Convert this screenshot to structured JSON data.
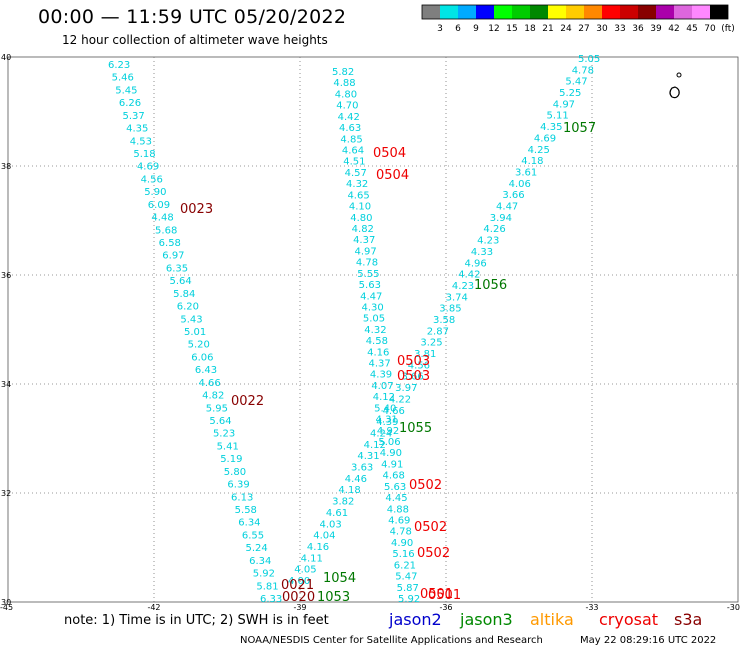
{
  "header": {
    "title": "00:00 — 11:59 UTC 05/20/2022",
    "subtitle": "12 hour collection of altimeter wave heights"
  },
  "colorbar": {
    "colors": [
      "#7f7f7f",
      "#00e5e5",
      "#00aaff",
      "#0000ff",
      "#00ff00",
      "#00cc00",
      "#008800",
      "#ffff00",
      "#ffcc00",
      "#ff8800",
      "#ff0000",
      "#cc0000",
      "#880000",
      "#aa00aa",
      "#dd66dd",
      "#ff88ff",
      "#000000"
    ],
    "ticks": [
      "3",
      "6",
      "9",
      "12",
      "15",
      "18",
      "21",
      "24",
      "27",
      "30",
      "33",
      "36",
      "39",
      "42",
      "45",
      "70",
      "(ft)"
    ]
  },
  "axes": {
    "x_ticks": [
      "-45",
      "-42",
      "-39",
      "-36",
      "-33",
      "-30"
    ],
    "y_ticks": [
      "40",
      "38",
      "36",
      "34",
      "32",
      "30"
    ]
  },
  "tracks": [
    {
      "id": "track-west",
      "color": "#00d0dc",
      "labels": [
        "6.23",
        "5.46",
        "5.45",
        "6.26",
        "5.37",
        "4.35",
        "4.53",
        "5.18",
        "4.69",
        "4.56",
        "5.90",
        "6.09",
        "4.48",
        "5.68",
        "6.58",
        "6.97",
        "6.35",
        "5.64",
        "5.84",
        "6.20",
        "5.43",
        "5.01",
        "5.20",
        "6.06",
        "6.43",
        "4.66",
        "4.82",
        "5.95",
        "5.64",
        "5.23",
        "5.41",
        "5.19",
        "5.80",
        "6.39",
        "6.13",
        "5.58",
        "6.34",
        "6.55",
        "5.24",
        "6.34",
        "5.92",
        "5.81",
        "6.33"
      ]
    },
    {
      "id": "track-middle",
      "color": "#00d0dc",
      "labels": [
        "5.82",
        "4.88",
        "4.80",
        "4.70",
        "4.42",
        "4.63",
        "4.85",
        "4.64",
        "4.51",
        "4.57",
        "4.32",
        "4.65",
        "4.10",
        "4.80",
        "4.82",
        "4.37",
        "4.97",
        "4.78",
        "5.55",
        "5.63",
        "4.47",
        "4.30",
        "5.05",
        "4.32",
        "4.58",
        "4.16",
        "4.37",
        "4.39",
        "4.07",
        "4.12",
        "5.40",
        "4.31",
        "4.92",
        "5.06",
        "4.90",
        "4.91",
        "4.68",
        "5.63",
        "4.45",
        "4.88",
        "4.69",
        "4.78",
        "4.90",
        "5.16",
        "6.21",
        "5.47",
        "5.87",
        "5.92"
      ]
    },
    {
      "id": "track-diagonal",
      "color": "#00d0dc",
      "labels": [
        "5.05",
        "4.78",
        "5.47",
        "5.25",
        "4.97",
        "5.11",
        "4.35",
        "4.69",
        "4.25",
        "4.18",
        "3.61",
        "4.06",
        "3.66",
        "4.47",
        "3.94",
        "4.26",
        "4.23",
        "4.33",
        "4.96",
        "4.42",
        "4.23",
        "3.74",
        "3.85",
        "3.58",
        "2.87",
        "3.25",
        "3.81",
        "4.56",
        "3.66",
        "3.97",
        "4.22",
        "4.66",
        "4.39",
        "4.24",
        "4.12",
        "4.31",
        "3.63",
        "4.46",
        "4.18",
        "3.82",
        "4.61",
        "4.03",
        "4.04",
        "4.16",
        "4.11",
        "4.05",
        "4.00"
      ]
    }
  ],
  "time_labels": [
    {
      "text": "0023",
      "color": "#880000"
    },
    {
      "text": "0022",
      "color": "#880000"
    },
    {
      "text": "0021",
      "color": "#880000"
    },
    {
      "text": "0020",
      "color": "#880000"
    },
    {
      "text": "0504",
      "color": "#ee0000"
    },
    {
      "text": "0504",
      "color": "#ee0000"
    },
    {
      "text": "0503",
      "color": "#ee0000"
    },
    {
      "text": "0503",
      "color": "#ee0000"
    },
    {
      "text": "0502",
      "color": "#ee0000"
    },
    {
      "text": "0502",
      "color": "#ee0000"
    },
    {
      "text": "0502",
      "color": "#ee0000"
    },
    {
      "text": "0501",
      "color": "#ee0000"
    },
    {
      "text": "0501",
      "color": "#ee0000"
    },
    {
      "text": "1057",
      "color": "#007700"
    },
    {
      "text": "1056",
      "color": "#007700"
    },
    {
      "text": "1055",
      "color": "#007700"
    },
    {
      "text": "1054",
      "color": "#007700"
    },
    {
      "text": "1053",
      "color": "#007700"
    }
  ],
  "note": "note:  1) Time is in UTC;  2) SWH is in feet",
  "satellites": [
    {
      "name": "jason2",
      "color": "#0000cc"
    },
    {
      "name": "jason3",
      "color": "#008800"
    },
    {
      "name": "altika",
      "color": "#ff9900"
    },
    {
      "name": "cryosat",
      "color": "#ee0000"
    },
    {
      "name": "s3a",
      "color": "#880000"
    }
  ],
  "footer": {
    "org": "NOAA/NESDIS Center for Satellite Applications and Research",
    "time": "May 22 08:29:16 UTC 2022"
  }
}
